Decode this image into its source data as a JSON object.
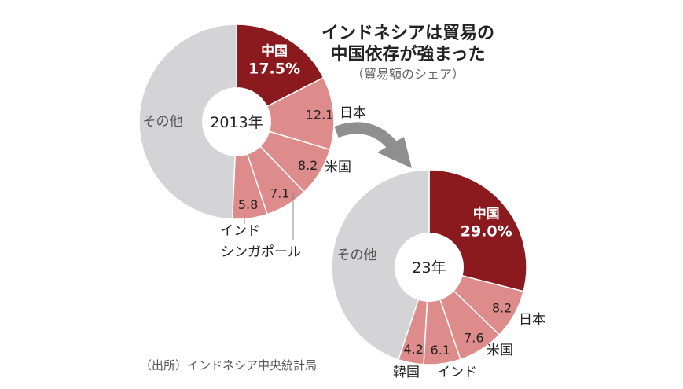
{
  "title": {
    "line1": "インドネシアは貿易の",
    "line2": "中国依存が強まった",
    "subtitle": "（貿易額のシェア）"
  },
  "source": "（出所）インドネシア中央統計局",
  "colors": {
    "china": "#8b1a1f",
    "partner": "#de8b8b",
    "other": "#d4d4d6",
    "separator": "#ffffff",
    "arrow": "#8f8f8f",
    "text": "#222222",
    "leader": "#888888"
  },
  "chart_data": [
    {
      "type": "pie",
      "variant": "donut",
      "year_label": "2013年",
      "categories": [
        "中国",
        "日本",
        "米国",
        "シンガポール",
        "インド",
        "その他"
      ],
      "values": [
        17.5,
        12.1,
        8.2,
        7.1,
        5.8,
        49.3
      ],
      "value_labels": [
        "17.5%",
        "12.1",
        "8.2",
        "7.1",
        "5.8",
        ""
      ],
      "outside_labels": [
        "",
        "日本",
        "米国",
        "シンガポール",
        "インド",
        ""
      ],
      "inside_category_labels": [
        "中国",
        "",
        "",
        "",
        "",
        "その他"
      ]
    },
    {
      "type": "pie",
      "variant": "donut",
      "year_label": "23年",
      "categories": [
        "中国",
        "日本",
        "米国",
        "インド",
        "韓国",
        "その他"
      ],
      "values": [
        29.0,
        8.2,
        7.6,
        6.1,
        4.2,
        44.9
      ],
      "value_labels": [
        "29.0%",
        "8.2",
        "7.6",
        "6.1",
        "4.2",
        ""
      ],
      "outside_labels": [
        "",
        "日本",
        "米国",
        "インド",
        "韓国",
        ""
      ],
      "inside_category_labels": [
        "中国",
        "",
        "",
        "",
        "",
        "その他"
      ]
    }
  ]
}
